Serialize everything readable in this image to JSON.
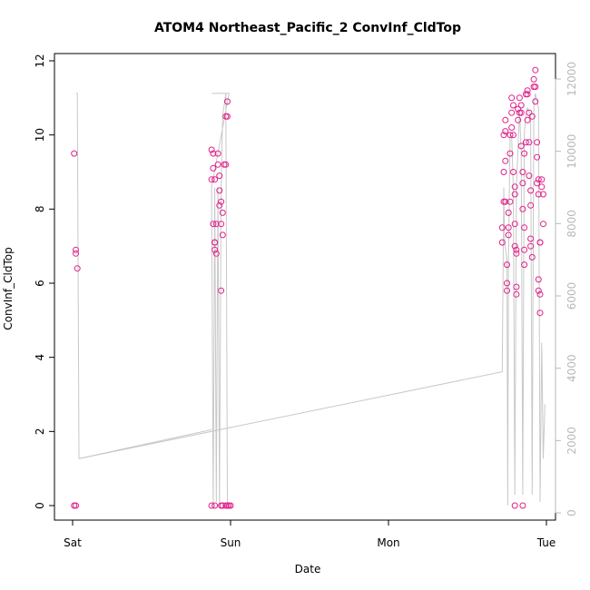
{
  "chart_data": {
    "type": "scatter",
    "title": "ATOM4 Northeast_Pacific_2 ConvInf_CldTop",
    "xlabel": "Date",
    "ylabel": "ConvInf_CldTop",
    "x_ticks": [
      {
        "t": 0.0,
        "label": "Sat"
      },
      {
        "t": 1.0,
        "label": "Sun"
      },
      {
        "t": 2.0,
        "label": "Mon"
      },
      {
        "t": 3.0,
        "label": "Tue"
      }
    ],
    "xlim": [
      0,
      3.05
    ],
    "ylim": [
      0,
      12
    ],
    "y_ticks": [
      0,
      2,
      4,
      6,
      8,
      10,
      12
    ],
    "y2_lim": [
      0,
      12000
    ],
    "y2_ticks": [
      0,
      2000,
      4000,
      6000,
      8000,
      10000,
      12000
    ],
    "colors": {
      "points": "#e0208a",
      "line": "#c8c8c8",
      "axis": "#000000",
      "right_axis": "#b8b8b8"
    },
    "series": [
      {
        "type": "scatter",
        "axis": "left",
        "points": [
          [
            0.01,
            0.0
          ],
          [
            0.02,
            0.0
          ],
          [
            0.01,
            9.5
          ],
          [
            0.02,
            6.9
          ],
          [
            0.02,
            6.8
          ],
          [
            0.03,
            6.4
          ],
          [
            0.88,
            9.6
          ],
          [
            0.89,
            9.5
          ],
          [
            0.89,
            9.1
          ],
          [
            0.88,
            8.8
          ],
          [
            0.9,
            8.8
          ],
          [
            0.89,
            7.6
          ],
          [
            0.9,
            7.1
          ],
          [
            0.9,
            7.1
          ],
          [
            0.9,
            6.9
          ],
          [
            0.91,
            6.8
          ],
          [
            0.88,
            0.0
          ],
          [
            0.9,
            0.0
          ],
          [
            0.91,
            7.6
          ],
          [
            0.92,
            9.2
          ],
          [
            0.92,
            9.5
          ],
          [
            0.93,
            8.9
          ],
          [
            0.93,
            8.5
          ],
          [
            0.93,
            8.1
          ],
          [
            0.94,
            8.2
          ],
          [
            0.94,
            7.6
          ],
          [
            0.95,
            7.9
          ],
          [
            0.95,
            7.3
          ],
          [
            0.94,
            5.8
          ],
          [
            0.94,
            0.0
          ],
          [
            0.95,
            0.0
          ],
          [
            0.96,
            9.2
          ],
          [
            0.97,
            9.2
          ],
          [
            0.97,
            10.5
          ],
          [
            0.98,
            10.5
          ],
          [
            0.98,
            10.9
          ],
          [
            0.97,
            0.0
          ],
          [
            0.98,
            0.0
          ],
          [
            0.99,
            0.0
          ],
          [
            1.0,
            0.0
          ],
          [
            2.72,
            7.5
          ],
          [
            2.72,
            7.1
          ],
          [
            2.73,
            8.2
          ],
          [
            2.73,
            9.0
          ],
          [
            2.73,
            10.0
          ],
          [
            2.74,
            10.1
          ],
          [
            2.74,
            10.4
          ],
          [
            2.74,
            9.3
          ],
          [
            2.74,
            8.2
          ],
          [
            2.75,
            6.5
          ],
          [
            2.75,
            6.0
          ],
          [
            2.75,
            5.8
          ],
          [
            2.76,
            7.3
          ],
          [
            2.76,
            7.5
          ],
          [
            2.76,
            7.9
          ],
          [
            2.77,
            8.2
          ],
          [
            2.77,
            10.0
          ],
          [
            2.77,
            9.5
          ],
          [
            2.78,
            10.2
          ],
          [
            2.78,
            10.6
          ],
          [
            2.78,
            11.0
          ],
          [
            2.79,
            10.8
          ],
          [
            2.79,
            10.0
          ],
          [
            2.79,
            9.0
          ],
          [
            2.8,
            8.6
          ],
          [
            2.8,
            8.4
          ],
          [
            2.8,
            7.6
          ],
          [
            2.8,
            7.0
          ],
          [
            2.81,
            6.8
          ],
          [
            2.81,
            6.9
          ],
          [
            2.81,
            5.9
          ],
          [
            2.81,
            5.7
          ],
          [
            2.8,
            0.0
          ],
          [
            2.82,
            10.4
          ],
          [
            2.82,
            10.7
          ],
          [
            2.83,
            10.6
          ],
          [
            2.83,
            11.0
          ],
          [
            2.84,
            10.8
          ],
          [
            2.84,
            10.6
          ],
          [
            2.84,
            9.7
          ],
          [
            2.85,
            9.0
          ],
          [
            2.85,
            8.7
          ],
          [
            2.85,
            8.0
          ],
          [
            2.86,
            7.5
          ],
          [
            2.86,
            6.9
          ],
          [
            2.86,
            6.5
          ],
          [
            2.85,
            0.0
          ],
          [
            2.86,
            9.5
          ],
          [
            2.87,
            9.8
          ],
          [
            2.87,
            11.1
          ],
          [
            2.88,
            11.2
          ],
          [
            2.88,
            11.1
          ],
          [
            2.88,
            10.4
          ],
          [
            2.89,
            10.6
          ],
          [
            2.89,
            9.8
          ],
          [
            2.89,
            8.9
          ],
          [
            2.9,
            8.5
          ],
          [
            2.9,
            8.1
          ],
          [
            2.9,
            7.2
          ],
          [
            2.9,
            7.0
          ],
          [
            2.91,
            6.7
          ],
          [
            2.91,
            10.5
          ],
          [
            2.92,
            11.3
          ],
          [
            2.92,
            11.5
          ],
          [
            2.93,
            11.3
          ],
          [
            2.93,
            11.75
          ],
          [
            2.93,
            10.9
          ],
          [
            2.94,
            9.8
          ],
          [
            2.94,
            9.4
          ],
          [
            2.94,
            8.7
          ],
          [
            2.95,
            8.4
          ],
          [
            2.95,
            8.8
          ],
          [
            2.96,
            7.1
          ],
          [
            2.96,
            7.1
          ],
          [
            2.95,
            6.1
          ],
          [
            2.95,
            5.8
          ],
          [
            2.96,
            5.7
          ],
          [
            2.96,
            5.2
          ],
          [
            2.97,
            8.8
          ],
          [
            2.98,
            8.4
          ],
          [
            2.98,
            7.6
          ],
          [
            2.97,
            8.6
          ]
        ]
      },
      {
        "type": "line",
        "axis": "right",
        "points": [
          [
            0.02,
            11600
          ],
          [
            0.03,
            11600
          ],
          [
            0.04,
            1500
          ],
          [
            0.04,
            1500
          ],
          [
            2.72,
            3900
          ],
          [
            2.73,
            9000
          ],
          [
            2.735,
            7500
          ],
          [
            2.75,
            7000
          ],
          [
            2.755,
            200
          ],
          [
            2.76,
            7000
          ],
          [
            2.77,
            10500
          ],
          [
            2.78,
            10400
          ],
          [
            2.79,
            9000
          ],
          [
            2.8,
            500
          ],
          [
            2.81,
            9000
          ],
          [
            2.83,
            11100
          ],
          [
            2.84,
            10000
          ],
          [
            2.85,
            500
          ],
          [
            2.86,
            10500
          ],
          [
            2.87,
            11000
          ],
          [
            2.88,
            11200
          ],
          [
            2.9,
            11000
          ],
          [
            2.91,
            500
          ],
          [
            2.92,
            11200
          ],
          [
            2.93,
            11600
          ],
          [
            2.95,
            11200
          ],
          [
            2.96,
            300
          ],
          [
            2.97,
            4700
          ],
          [
            2.98,
            1500
          ],
          [
            2.99,
            3000
          ]
        ]
      },
      {
        "type": "line",
        "axis": "right",
        "points": [
          [
            0.88,
            11600
          ],
          [
            0.99,
            11600
          ],
          [
            0.88,
            9000
          ],
          [
            0.89,
            200
          ],
          [
            0.9,
            9000
          ],
          [
            0.91,
            300
          ],
          [
            0.92,
            9000
          ],
          [
            0.93,
            200
          ],
          [
            0.94,
            9000
          ],
          [
            0.95,
            11000
          ],
          [
            0.97,
            11600
          ],
          [
            0.98,
            200
          ]
        ]
      },
      {
        "type": "line",
        "axis": "right",
        "points": [
          [
            0.04,
            1500
          ],
          [
            0.88,
            2300
          ]
        ]
      }
    ]
  }
}
